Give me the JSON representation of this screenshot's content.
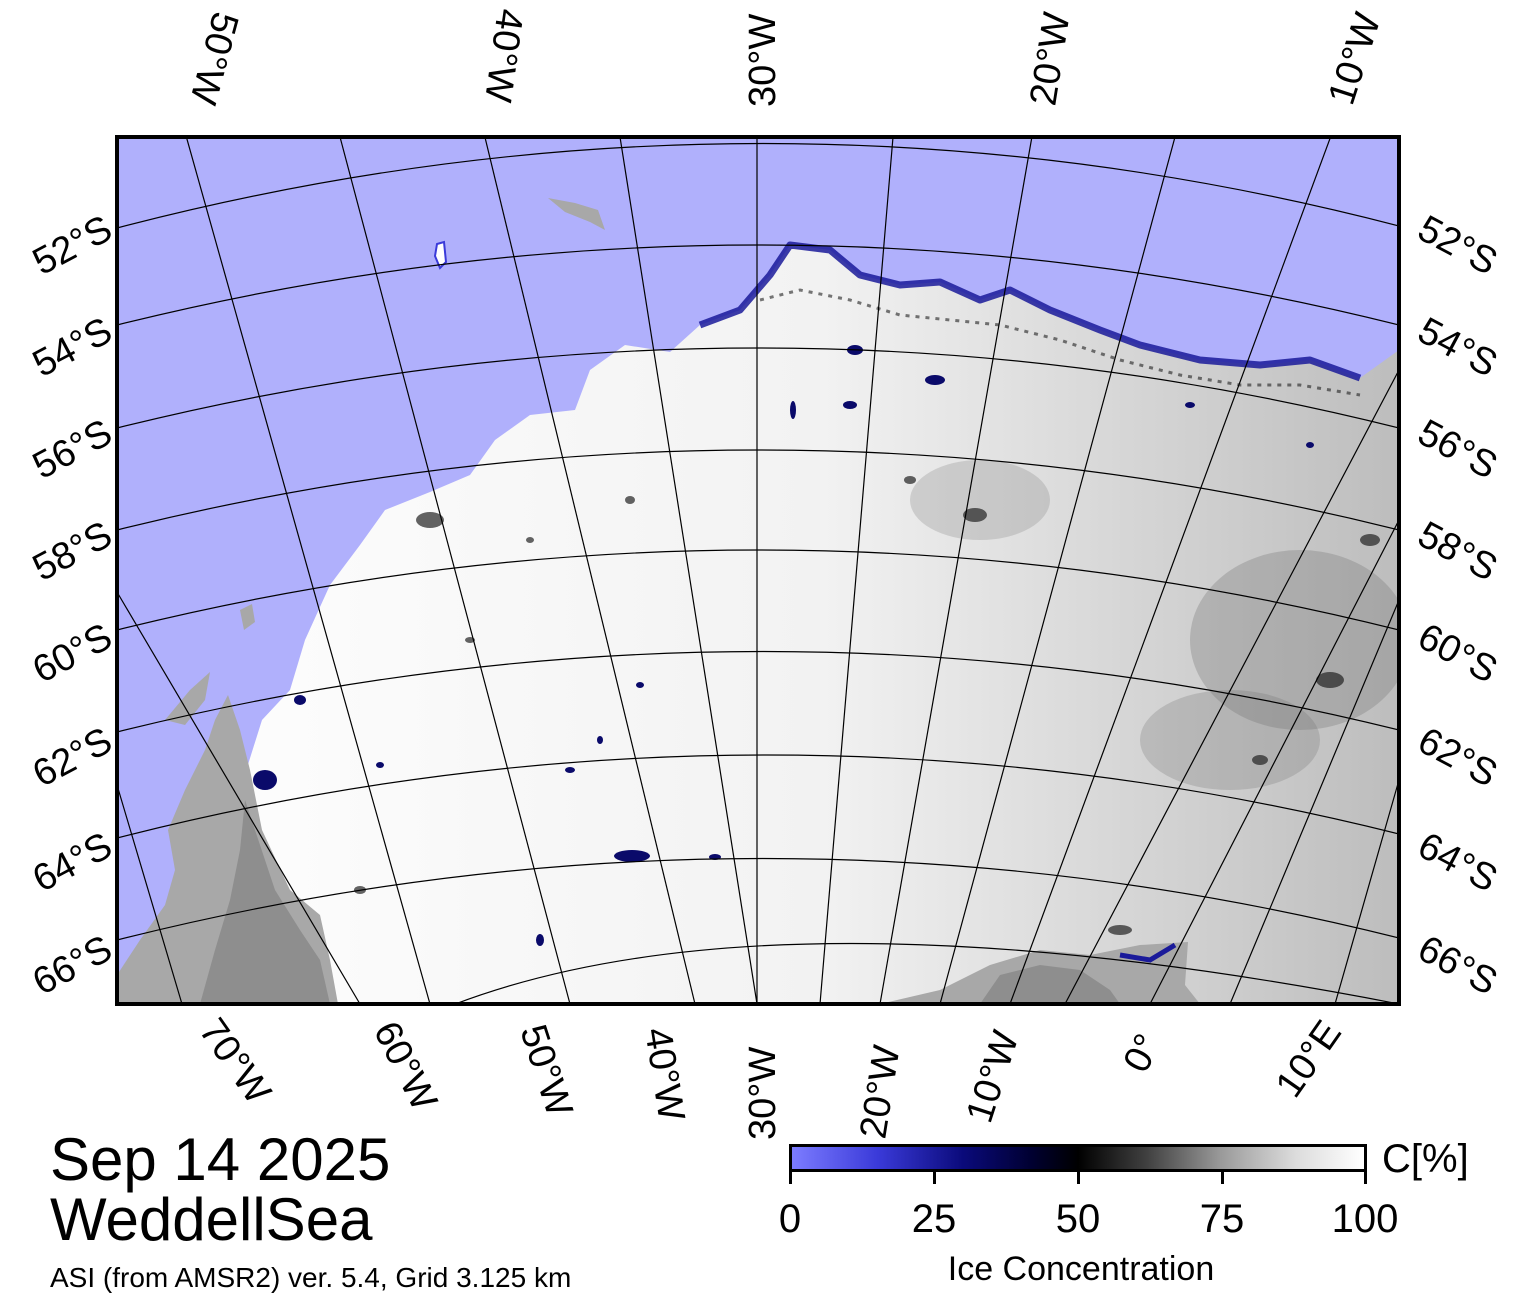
{
  "map": {
    "top_lon_labels": [
      "50°W",
      "40°W",
      "30°W",
      "20°W",
      "10°W"
    ],
    "bottom_lon_labels": [
      "70°W",
      "60°W",
      "50°W",
      "40°W",
      "30°W",
      "20°W",
      "10°W",
      "0°",
      "10°E"
    ],
    "left_lat_labels": [
      "52°S",
      "54°S",
      "56°S",
      "58°S",
      "60°S",
      "62°S",
      "64°S",
      "66°S"
    ],
    "right_lat_labels": [
      "52°S",
      "54°S",
      "56°S",
      "58°S",
      "60°S",
      "62°S",
      "64°S",
      "66°S"
    ],
    "colors": {
      "open_water": "#b0b0fc",
      "land": "#a8a8a8",
      "ice_high": "#ffffff",
      "ice_low": "#0a0a7a",
      "grid": "#000000"
    }
  },
  "title": {
    "date": "Sep 14 2025",
    "region": "WeddellSea"
  },
  "source_note": "ASI (from AMSR2) ver. 5.4,  Grid 3.125 km",
  "colorbar": {
    "ticks": [
      "0",
      "25",
      "50",
      "75",
      "100"
    ],
    "unit": "C[%]",
    "title": "Ice Concentration"
  }
}
